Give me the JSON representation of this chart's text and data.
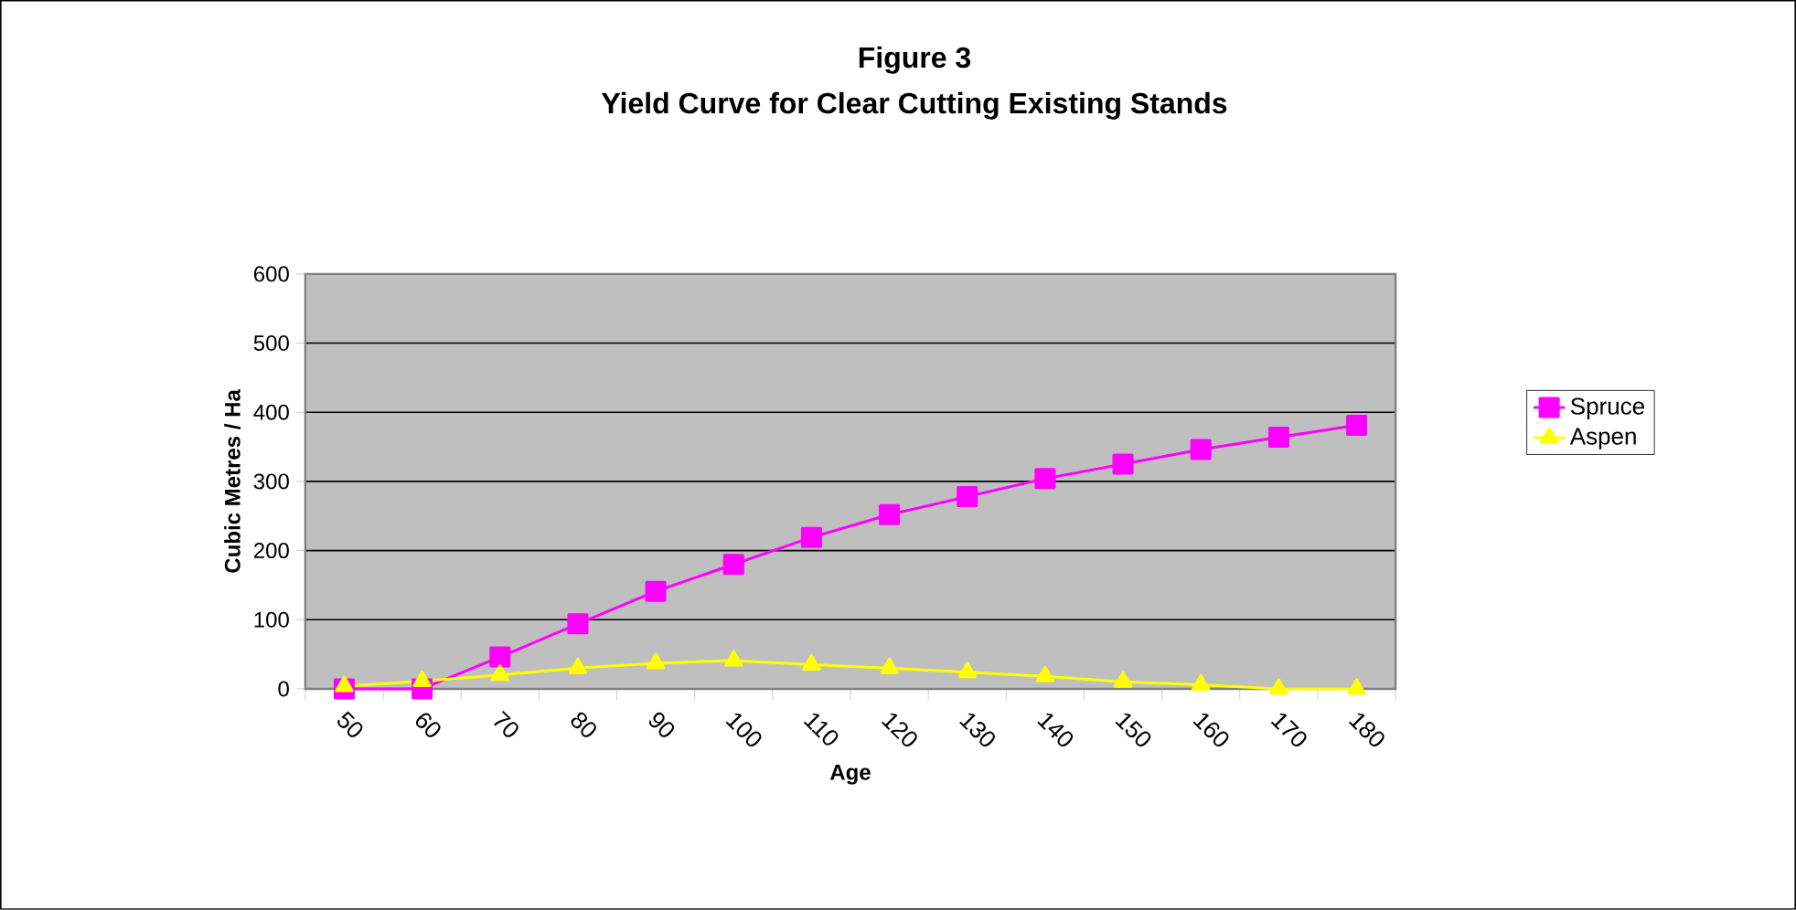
{
  "chart_data": {
    "type": "line",
    "title": "Figure 3",
    "subtitle": "Yield Curve for Clear Cutting Existing Stands",
    "xlabel": "Age",
    "ylabel": "Cubic Metres / Ha",
    "categories": [
      "50",
      "60",
      "70",
      "80",
      "90",
      "100",
      "110",
      "120",
      "130",
      "140",
      "150",
      "160",
      "170",
      "180"
    ],
    "series": [
      {
        "name": "Spruce",
        "color": "#ff00ff",
        "marker": "square",
        "values": [
          0,
          0,
          46,
          94,
          141,
          180,
          219,
          252,
          278,
          304,
          325,
          346,
          364,
          381
        ]
      },
      {
        "name": "Aspen",
        "color": "#ffff00",
        "marker": "triangle",
        "values": [
          4,
          11,
          20,
          30,
          37,
          41,
          35,
          30,
          24,
          18,
          10,
          6,
          0,
          0
        ]
      }
    ],
    "ylim": [
      0,
      600
    ],
    "yticks": [
      0,
      100,
      200,
      300,
      400,
      500,
      600
    ],
    "grid": "y",
    "legend": "right",
    "line_style": "solid"
  }
}
